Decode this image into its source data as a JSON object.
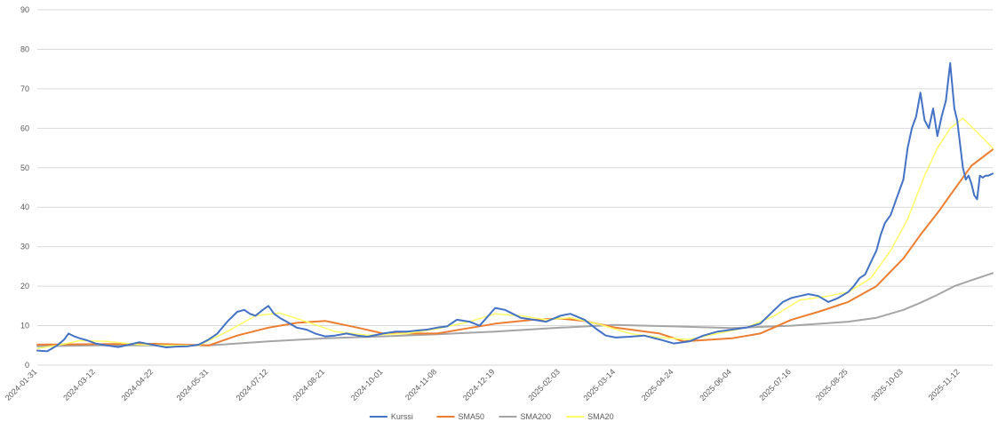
{
  "chart_data": {
    "type": "line",
    "title": "",
    "xlabel": "",
    "ylabel": "",
    "ylim": [
      0,
      90
    ],
    "y_ticks": [
      0,
      10,
      20,
      30,
      40,
      50,
      60,
      70,
      80,
      90
    ],
    "y_tick_labels": [
      "0",
      "10",
      "20",
      "30",
      "40",
      "50",
      "60",
      "70",
      "80",
      "90"
    ],
    "x_range": [
      "2024-01-31",
      "2025-12-05"
    ],
    "x_ticks": [
      "2024-01-31",
      "2024-03-12",
      "2024-04-22",
      "2024-05-31",
      "2024-07-12",
      "2024-08-21",
      "2024-10-01",
      "2024-11-08",
      "2024-12-19",
      "2025-02-03",
      "2025-03-14",
      "2025-04-24",
      "2025-06-04",
      "2025-07-16",
      "2025-08-25",
      "2025-10-03",
      "2025-11-12"
    ],
    "grid": "horizontal",
    "legend_position": "bottom",
    "colors": {
      "Kurssi": "#4472c4",
      "SMA50": "#ed7d31",
      "SMA200": "#a5a5a5",
      "SMA20": "#ffff66",
      "grid": "#d9d9d9"
    },
    "series": [
      {
        "name": "Kurssi",
        "x": [
          "2024-01-31",
          "2024-02-07",
          "2024-02-14",
          "2024-02-19",
          "2024-02-22",
          "2024-02-26",
          "2024-03-01",
          "2024-03-06",
          "2024-03-12",
          "2024-03-20",
          "2024-03-28",
          "2024-04-05",
          "2024-04-12",
          "2024-04-22",
          "2024-05-01",
          "2024-05-08",
          "2024-05-16",
          "2024-05-24",
          "2024-05-31",
          "2024-06-06",
          "2024-06-13",
          "2024-06-20",
          "2024-06-25",
          "2024-06-29",
          "2024-07-03",
          "2024-07-08",
          "2024-07-12",
          "2024-07-16",
          "2024-07-20",
          "2024-07-25",
          "2024-08-01",
          "2024-08-08",
          "2024-08-14",
          "2024-08-21",
          "2024-08-28",
          "2024-09-05",
          "2024-09-13",
          "2024-09-20",
          "2024-10-01",
          "2024-10-10",
          "2024-10-18",
          "2024-10-26",
          "2024-11-01",
          "2024-11-08",
          "2024-11-15",
          "2024-11-22",
          "2024-12-01",
          "2024-12-08",
          "2024-12-13",
          "2024-12-19",
          "2024-12-26",
          "2025-01-06",
          "2025-01-15",
          "2025-01-24",
          "2025-02-03",
          "2025-02-10",
          "2025-02-20",
          "2025-03-01",
          "2025-03-07",
          "2025-03-14",
          "2025-03-24",
          "2025-04-03",
          "2025-04-14",
          "2025-04-24",
          "2025-05-05",
          "2025-05-15",
          "2025-05-25",
          "2025-06-04",
          "2025-06-14",
          "2025-06-24",
          "2025-07-04",
          "2025-07-10",
          "2025-07-16",
          "2025-07-22",
          "2025-07-28",
          "2025-08-04",
          "2025-08-11",
          "2025-08-18",
          "2025-08-25",
          "2025-08-29",
          "2025-09-02",
          "2025-09-06",
          "2025-09-10",
          "2025-09-14",
          "2025-09-17",
          "2025-09-20",
          "2025-09-24",
          "2025-09-28",
          "2025-10-01",
          "2025-10-03",
          "2025-10-06",
          "2025-10-09",
          "2025-10-12",
          "2025-10-15",
          "2025-10-18",
          "2025-10-21",
          "2025-10-24",
          "2025-10-27",
          "2025-10-30",
          "2025-11-02",
          "2025-11-05",
          "2025-11-08",
          "2025-11-10",
          "2025-11-12",
          "2025-11-14",
          "2025-11-16",
          "2025-11-18",
          "2025-11-20",
          "2025-11-22",
          "2025-11-24",
          "2025-11-26",
          "2025-11-28",
          "2025-11-30",
          "2025-12-02",
          "2025-12-05"
        ],
        "values": [
          3.7,
          3.5,
          5.0,
          6.5,
          8.0,
          7.3,
          6.8,
          6.3,
          5.5,
          5.0,
          4.6,
          5.2,
          5.8,
          5.1,
          4.5,
          4.7,
          4.8,
          5.2,
          6.5,
          8.0,
          11.0,
          13.5,
          14.0,
          13.0,
          12.5,
          14.0,
          15.0,
          13.0,
          12.0,
          11.0,
          9.5,
          9.0,
          8.0,
          7.3,
          7.5,
          8.0,
          7.5,
          7.2,
          8.0,
          8.5,
          8.5,
          8.8,
          9.0,
          9.5,
          9.8,
          11.5,
          11.0,
          10.0,
          12.0,
          14.5,
          14.0,
          12.0,
          11.5,
          11.0,
          12.5,
          13.0,
          11.5,
          9.0,
          7.5,
          7.0,
          7.2,
          7.5,
          6.5,
          5.5,
          6.0,
          7.5,
          8.5,
          9.0,
          9.5,
          10.5,
          14.0,
          16.0,
          17.0,
          17.5,
          18.0,
          17.5,
          16.0,
          17.0,
          18.5,
          20.0,
          22.0,
          23.0,
          26.0,
          29.0,
          33.0,
          36.0,
          38.0,
          42.0,
          45.0,
          47.0,
          55.0,
          60.0,
          63.0,
          69.0,
          62.0,
          60.0,
          65.0,
          58.0,
          63.0,
          67.0,
          76.5,
          65.0,
          62.0,
          56.0,
          50.0,
          47.0,
          48.0,
          46.0,
          43.0,
          42.0,
          48.0,
          47.5,
          48.0,
          48.0,
          48.5
        ]
      },
      {
        "name": "SMA50",
        "x": [
          "2024-01-31",
          "2024-03-12",
          "2024-04-22",
          "2024-05-31",
          "2024-06-20",
          "2024-07-12",
          "2024-08-01",
          "2024-08-21",
          "2024-09-13",
          "2024-10-01",
          "2024-11-08",
          "2024-12-19",
          "2025-01-15",
          "2025-02-03",
          "2025-02-20",
          "2025-03-14",
          "2025-04-14",
          "2025-05-01",
          "2025-06-04",
          "2025-06-24",
          "2025-07-16",
          "2025-08-04",
          "2025-08-25",
          "2025-09-14",
          "2025-10-03",
          "2025-10-15",
          "2025-10-27",
          "2025-11-08",
          "2025-11-20",
          "2025-12-05"
        ],
        "values": [
          5.2,
          5.3,
          5.4,
          5.0,
          7.5,
          9.5,
          10.7,
          11.2,
          9.5,
          8.0,
          8.0,
          10.5,
          11.5,
          11.8,
          11.2,
          9.5,
          8.0,
          6.0,
          6.8,
          8.0,
          11.5,
          13.5,
          16.0,
          20.0,
          27.0,
          33.0,
          38.5,
          44.5,
          50.5,
          54.6
        ]
      },
      {
        "name": "SMA200",
        "x": [
          "2024-01-31",
          "2024-03-12",
          "2024-04-22",
          "2024-05-31",
          "2024-07-12",
          "2024-08-21",
          "2024-10-01",
          "2024-11-08",
          "2024-12-19",
          "2025-02-03",
          "2025-03-14",
          "2025-04-24",
          "2025-06-04",
          "2025-07-16",
          "2025-08-25",
          "2025-09-14",
          "2025-10-03",
          "2025-10-15",
          "2025-10-27",
          "2025-11-08",
          "2025-11-20",
          "2025-12-05"
        ],
        "values": [
          4.8,
          5.0,
          5.0,
          5.0,
          6.0,
          6.8,
          7.3,
          7.8,
          8.5,
          9.5,
          10.2,
          9.8,
          9.4,
          10.0,
          11.0,
          12.0,
          14.0,
          15.8,
          17.8,
          20.0,
          21.5,
          23.3
        ]
      },
      {
        "name": "SMA20",
        "x": [
          "2024-01-31",
          "2024-02-14",
          "2024-03-01",
          "2024-03-20",
          "2024-04-12",
          "2024-05-01",
          "2024-05-24",
          "2024-06-13",
          "2024-07-03",
          "2024-07-20",
          "2024-08-08",
          "2024-08-28",
          "2024-09-20",
          "2024-10-18",
          "2024-11-08",
          "2024-12-01",
          "2024-12-19",
          "2025-01-06",
          "2025-01-24",
          "2025-02-10",
          "2025-03-01",
          "2025-03-24",
          "2025-04-14",
          "2025-05-05",
          "2025-05-25",
          "2025-06-14",
          "2025-07-04",
          "2025-07-22",
          "2025-08-11",
          "2025-08-25",
          "2025-09-10",
          "2025-09-24",
          "2025-10-06",
          "2025-10-18",
          "2025-10-27",
          "2025-11-05",
          "2025-11-14",
          "2025-11-24",
          "2025-12-05"
        ],
        "values": [
          4.2,
          5.0,
          6.2,
          6.0,
          5.2,
          5.0,
          5.0,
          8.5,
          12.5,
          13.2,
          11.0,
          8.5,
          7.6,
          8.0,
          9.2,
          11.0,
          13.0,
          12.5,
          11.5,
          12.0,
          10.5,
          8.0,
          7.0,
          6.5,
          8.0,
          9.5,
          12.5,
          16.5,
          17.5,
          18.5,
          22.0,
          29.0,
          37.0,
          48.0,
          55.0,
          60.0,
          62.5,
          59.0,
          55.0
        ]
      }
    ]
  }
}
